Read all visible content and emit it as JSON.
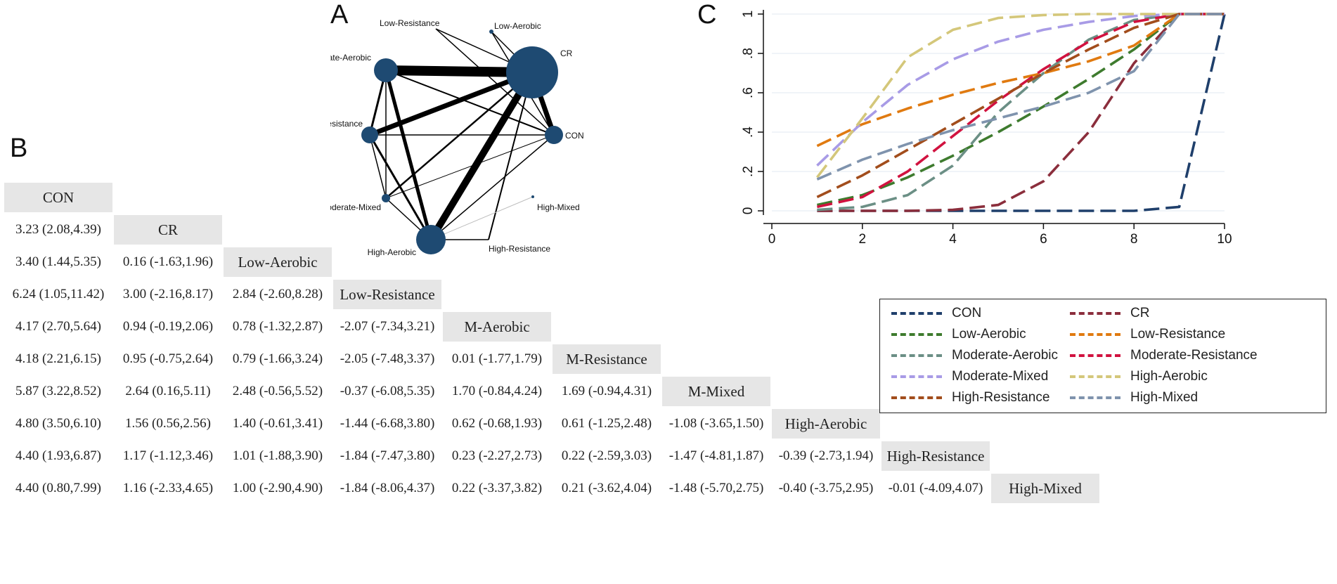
{
  "panels": {
    "a": "A",
    "b": "B",
    "c": "C"
  },
  "network": {
    "nodes": [
      {
        "id": "Low-Resistance",
        "label": "Low-Resistance"
      },
      {
        "id": "Low-Aerobic",
        "label": "Low-Aerobic"
      },
      {
        "id": "CR",
        "label": "CR"
      },
      {
        "id": "Moderate-Aerobic",
        "label": "Moderate-Aerobic"
      },
      {
        "id": "Moderate-Resistance",
        "label": "Moderate-Resistance"
      },
      {
        "id": "CON",
        "label": "CON"
      },
      {
        "id": "Moderate-Mixed",
        "label": "Moderate-Mixed"
      },
      {
        "id": "High-Mixed",
        "label": "High-Mixed"
      },
      {
        "id": "High-Aerobic",
        "label": "High-Aerobic"
      },
      {
        "id": "High-Resistance",
        "label": "High-Resistance"
      }
    ]
  },
  "league": {
    "treatments": [
      "CON",
      "CR",
      "Low-Aerobic",
      "Low-Resistance",
      "M-Aerobic",
      "M-Resistance",
      "M-Mixed",
      "High-Aerobic",
      "High-Resistance",
      "High-Mixed"
    ],
    "rows": [
      [],
      [
        "3.23 (2.08,4.39)"
      ],
      [
        "3.40 (1.44,5.35)",
        "0.16 (-1.63,1.96)"
      ],
      [
        "6.24 (1.05,11.42)",
        "3.00 (-2.16,8.17)",
        "2.84 (-2.60,8.28)"
      ],
      [
        "4.17 (2.70,5.64)",
        "0.94 (-0.19,2.06)",
        "0.78 (-1.32,2.87)",
        "-2.07 (-7.34,3.21)"
      ],
      [
        "4.18 (2.21,6.15)",
        "0.95 (-0.75,2.64)",
        "0.79 (-1.66,3.24)",
        "-2.05 (-7.48,3.37)",
        "0.01 (-1.77,1.79)"
      ],
      [
        "5.87 (3.22,8.52)",
        "2.64 (0.16,5.11)",
        "2.48 (-0.56,5.52)",
        "-0.37 (-6.08,5.35)",
        "1.70 (-0.84,4.24)",
        "1.69 (-0.94,4.31)"
      ],
      [
        "4.80 (3.50,6.10)",
        "1.56 (0.56,2.56)",
        "1.40 (-0.61,3.41)",
        "-1.44 (-6.68,3.80)",
        "0.62 (-0.68,1.93)",
        "0.61 (-1.25,2.48)",
        "-1.08 (-3.65,1.50)"
      ],
      [
        "4.40 (1.93,6.87)",
        "1.17 (-1.12,3.46)",
        "1.01 (-1.88,3.90)",
        "-1.84 (-7.47,3.80)",
        "0.23 (-2.27,2.73)",
        "0.22 (-2.59,3.03)",
        "-1.47 (-4.81,1.87)",
        "-0.39 (-2.73,1.94)"
      ],
      [
        "4.40 (0.80,7.99)",
        "1.16 (-2.33,4.65)",
        "1.00 (-2.90,4.90)",
        "-1.84 (-8.06,4.37)",
        "0.22 (-3.37,3.82)",
        "0.21 (-3.62,4.04)",
        "-1.48 (-5.70,2.75)",
        "-0.40 (-3.75,2.95)",
        "-0.01 (-4.09,4.07)"
      ]
    ]
  },
  "chart_data": {
    "type": "line",
    "title": "",
    "xlabel": "",
    "ylabel": "",
    "xlim": [
      0,
      10
    ],
    "ylim": [
      0,
      1
    ],
    "x_ticks": [
      "0",
      "2",
      "4",
      "6",
      "8",
      "10"
    ],
    "y_ticks": [
      "0",
      ".2",
      ".4",
      ".6",
      ".8",
      "1"
    ],
    "x": [
      1,
      2,
      3,
      4,
      5,
      6,
      7,
      8,
      9,
      10
    ],
    "series": [
      {
        "name": "CON",
        "color": "#1f3f6b",
        "values": [
          0.0,
          0.0,
          0.0,
          0.0,
          0.0,
          0.0,
          0.0,
          0.0,
          0.02,
          1.0
        ]
      },
      {
        "name": "CR",
        "color": "#8b2e3c",
        "values": [
          0.0,
          0.0,
          0.0,
          0.005,
          0.03,
          0.15,
          0.4,
          0.75,
          1.0,
          1.0
        ]
      },
      {
        "name": "Low-Aerobic",
        "color": "#3e7b2e",
        "values": [
          0.03,
          0.08,
          0.17,
          0.28,
          0.4,
          0.53,
          0.67,
          0.82,
          1.0,
          1.0
        ]
      },
      {
        "name": "Low-Resistance",
        "color": "#e07a10",
        "values": [
          0.33,
          0.44,
          0.52,
          0.59,
          0.65,
          0.7,
          0.76,
          0.84,
          1.0,
          1.0
        ]
      },
      {
        "name": "Moderate-Aerobic",
        "color": "#6b8f85",
        "values": [
          0.005,
          0.02,
          0.08,
          0.23,
          0.5,
          0.7,
          0.87,
          0.97,
          1.0,
          1.0
        ]
      },
      {
        "name": "Moderate-Resistance",
        "color": "#d1123f",
        "values": [
          0.02,
          0.07,
          0.2,
          0.38,
          0.56,
          0.72,
          0.86,
          0.96,
          1.0,
          1.0
        ]
      },
      {
        "name": "Moderate-Mixed",
        "color": "#a89be6",
        "values": [
          0.23,
          0.45,
          0.64,
          0.77,
          0.86,
          0.92,
          0.96,
          0.99,
          1.0,
          1.0
        ]
      },
      {
        "name": "High-Aerobic",
        "color": "#d4c77a",
        "values": [
          0.17,
          0.47,
          0.78,
          0.92,
          0.98,
          0.995,
          1.0,
          1.0,
          1.0,
          1.0
        ]
      },
      {
        "name": "High-Resistance",
        "color": "#a24d1c",
        "values": [
          0.07,
          0.18,
          0.31,
          0.44,
          0.57,
          0.7,
          0.82,
          0.93,
          1.0,
          1.0
        ]
      },
      {
        "name": "High-Mixed",
        "color": "#7f93ad",
        "values": [
          0.16,
          0.26,
          0.34,
          0.41,
          0.47,
          0.53,
          0.6,
          0.71,
          1.0,
          1.0
        ]
      }
    ],
    "legend_position": "bottom"
  }
}
